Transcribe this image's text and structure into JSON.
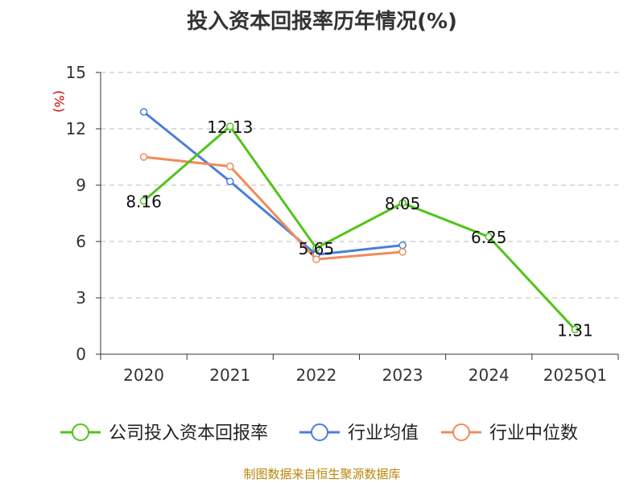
{
  "colors": {
    "company": "#52c41a",
    "industry_avg": "#4a7fdb",
    "industry_median": "#f08c5a",
    "axis": "#333333",
    "grid": "#bbbbbb",
    "ylabel": "#cc0000",
    "source": "#b8860b"
  },
  "chart_data": {
    "type": "line",
    "title": "投入资本回报率历年情况(%)",
    "ylabel": "(%)",
    "xlabel": "",
    "categories": [
      "2020",
      "2021",
      "2022",
      "2023",
      "2024",
      "2025Q1"
    ],
    "ylim": [
      0,
      15
    ],
    "yticks": [
      0,
      3,
      6,
      9,
      12,
      15
    ],
    "grid": true,
    "legend_position": "bottom",
    "series": [
      {
        "name": "公司投入资本回报率",
        "color_key": "company",
        "values": [
          8.16,
          12.13,
          5.65,
          8.05,
          6.25,
          1.31
        ],
        "labels": [
          "8.16",
          "12.13",
          "5.65",
          "8.05",
          "6.25",
          "1.31"
        ]
      },
      {
        "name": "行业均值",
        "color_key": "industry_avg",
        "values": [
          12.9,
          9.2,
          5.3,
          5.8,
          null,
          null
        ]
      },
      {
        "name": "行业中位数",
        "color_key": "industry_median",
        "values": [
          10.5,
          10.0,
          5.05,
          5.45,
          null,
          null
        ]
      }
    ]
  },
  "footer": {
    "source": "制图数据来自恒生聚源数据库"
  }
}
